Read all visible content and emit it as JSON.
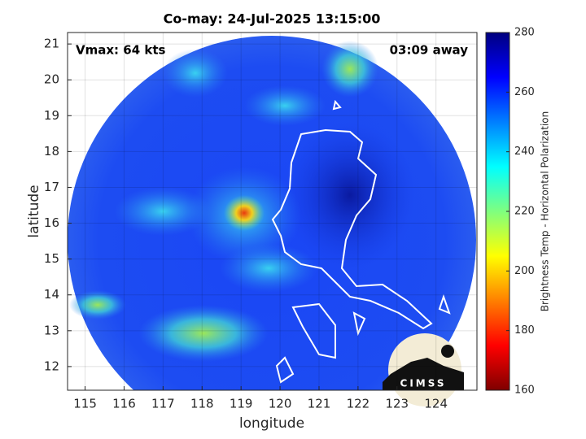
{
  "chart_data": {
    "type": "heatmap",
    "title": "Co-may: 24-Jul-2025 13:15:00",
    "xlabel": "longitude",
    "ylabel": "latitude",
    "xlim": [
      114.55,
      125.05
    ],
    "ylim": [
      11.34,
      21.32
    ],
    "xticks": [
      115,
      116,
      117,
      118,
      119,
      120,
      121,
      122,
      123,
      124
    ],
    "yticks": [
      12,
      13,
      14,
      15,
      16,
      17,
      18,
      19,
      20,
      21
    ],
    "grid": true,
    "annotations": [
      "Vmax: 64 kts",
      "03:09 away"
    ],
    "colorbar": {
      "label": "Brightness Temp - Horizontal Polarization",
      "lim": [
        160,
        280
      ],
      "ticks": [
        160,
        180,
        200,
        220,
        240,
        260,
        280
      ],
      "colormap": "jet_r"
    }
  },
  "logo": {
    "text": "CIMSS"
  }
}
